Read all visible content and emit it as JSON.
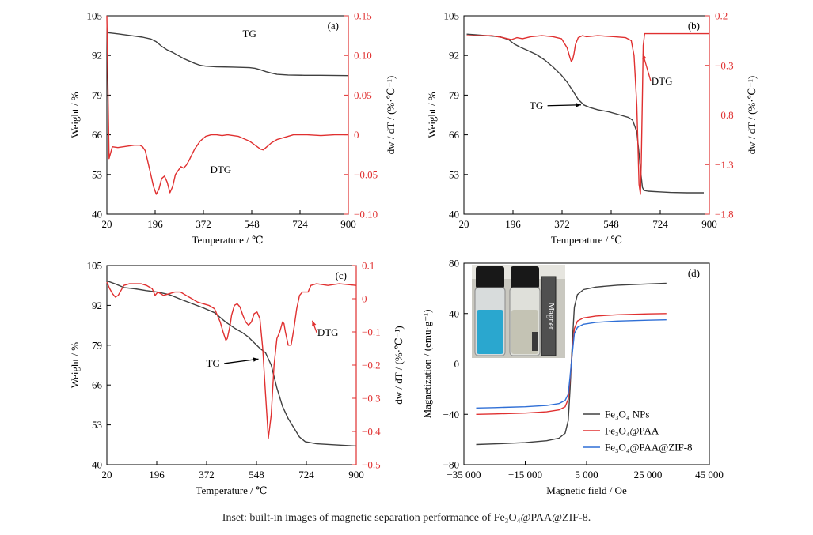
{
  "chart_data": [
    {
      "type": "line",
      "panel_label": "(a)",
      "xlabel": "Temperature / ℃",
      "ylabel_left": "Weight / %",
      "ylabel_right": "dw / dT / (%·℃⁻¹)",
      "xlim": [
        20,
        900
      ],
      "ylim_left": [
        40,
        105
      ],
      "ylim_right": [
        -0.1,
        0.15
      ],
      "x_ticks": [
        "20",
        "196",
        "372",
        "548",
        "724",
        "900"
      ],
      "y_ticks_left": [
        "40",
        "53",
        "66",
        "79",
        "92",
        "105"
      ],
      "y_ticks_right": [
        "−0.10",
        "−0.05",
        "0",
        "0.05",
        "0.10",
        "0.15"
      ],
      "annotations": [
        {
          "text": "TG",
          "x": 540,
          "y": 98,
          "axis": "left"
        },
        {
          "text": "DTG",
          "x": 435,
          "y": 53.5,
          "axis": "left"
        }
      ],
      "series": [
        {
          "name": "TG",
          "axis": "left",
          "color": "#404040",
          "x": [
            20,
            60,
            100,
            150,
            180,
            200,
            220,
            240,
            260,
            280,
            300,
            320,
            340,
            360,
            380,
            420,
            480,
            540,
            560,
            580,
            600,
            620,
            640,
            680,
            740,
            800,
            900
          ],
          "y": [
            99.5,
            99.1,
            98.6,
            98.0,
            97.4,
            96.5,
            95.0,
            93.8,
            93.0,
            92.0,
            91.0,
            90.2,
            89.4,
            88.8,
            88.5,
            88.3,
            88.2,
            88.0,
            87.8,
            87.3,
            86.7,
            86.2,
            85.8,
            85.6,
            85.5,
            85.5,
            85.4
          ]
        },
        {
          "name": "DTG",
          "axis": "right",
          "color": "#e03030",
          "x": [
            20,
            24,
            28,
            40,
            60,
            80,
            100,
            120,
            140,
            150,
            160,
            170,
            180,
            190,
            200,
            210,
            220,
            230,
            240,
            250,
            260,
            270,
            280,
            290,
            300,
            310,
            320,
            330,
            340,
            360,
            380,
            400,
            420,
            440,
            460,
            480,
            500,
            520,
            540,
            560,
            580,
            590,
            600,
            620,
            640,
            660,
            680,
            700,
            750,
            800,
            850,
            900
          ],
          "y": [
            0.15,
            0.06,
            -0.03,
            -0.015,
            -0.016,
            -0.015,
            -0.014,
            -0.013,
            -0.013,
            -0.015,
            -0.02,
            -0.035,
            -0.05,
            -0.065,
            -0.075,
            -0.068,
            -0.055,
            -0.052,
            -0.06,
            -0.073,
            -0.065,
            -0.05,
            -0.045,
            -0.04,
            -0.042,
            -0.038,
            -0.032,
            -0.025,
            -0.018,
            -0.008,
            -0.002,
            0.0,
            0.0,
            -0.001,
            0.0,
            -0.001,
            -0.002,
            -0.005,
            -0.008,
            -0.013,
            -0.018,
            -0.019,
            -0.016,
            -0.01,
            -0.006,
            -0.004,
            -0.002,
            0.0,
            0.0,
            -0.001,
            0.0,
            0.0
          ]
        }
      ]
    },
    {
      "type": "line",
      "panel_label": "(b)",
      "xlabel": "Temperature / ℃",
      "ylabel_left": "Weight / %",
      "ylabel_right": "dw / dT / (%·℃⁻¹)",
      "xlim": [
        20,
        900
      ],
      "ylim_left": [
        40,
        105
      ],
      "ylim_right": [
        -1.8,
        0.2
      ],
      "x_ticks": [
        "20",
        "196",
        "372",
        "548",
        "724",
        "900"
      ],
      "y_ticks_left": [
        "40",
        "53",
        "66",
        "79",
        "92",
        "105"
      ],
      "y_ticks_right": [
        "−1.8",
        "−1.3",
        "−0.8",
        "−0.3",
        "0.2"
      ],
      "annotations": [
        {
          "text": "TG",
          "x": 280,
          "y": 74.5,
          "axis": "left",
          "arrow_to": [
            440,
            75.8
          ]
        },
        {
          "text": "DTG",
          "x": 730,
          "y": 82.5,
          "axis": "left",
          "arrow_to": [
            662,
            92.5
          ]
        }
      ],
      "series": [
        {
          "name": "TG",
          "axis": "left",
          "color": "#404040",
          "x": [
            30,
            60,
            100,
            150,
            180,
            200,
            220,
            250,
            280,
            310,
            340,
            370,
            390,
            410,
            430,
            450,
            470,
            500,
            540,
            580,
            610,
            625,
            640,
            648,
            655,
            660,
            665,
            680,
            720,
            760,
            820,
            880
          ],
          "y": [
            99.0,
            98.8,
            98.5,
            98.1,
            97.2,
            95.8,
            94.8,
            93.6,
            92.3,
            90.5,
            88.2,
            85.5,
            83.3,
            80.5,
            77.6,
            75.8,
            75.0,
            74.2,
            73.5,
            72.5,
            71.7,
            70.8,
            67.0,
            60.0,
            53.0,
            48.8,
            47.8,
            47.5,
            47.3,
            47.1,
            47.0,
            47.0
          ]
        },
        {
          "name": "DTG",
          "axis": "right",
          "color": "#e03030",
          "x": [
            30,
            80,
            120,
            160,
            190,
            210,
            230,
            260,
            300,
            340,
            370,
            390,
            400,
            405,
            410,
            415,
            420,
            430,
            445,
            460,
            500,
            560,
            600,
            620,
            630,
            640,
            648,
            653,
            656,
            660,
            663,
            668,
            680,
            720,
            800,
            900
          ],
          "y": [
            0.0,
            0.0,
            0.0,
            -0.02,
            -0.04,
            -0.02,
            -0.03,
            -0.01,
            0.0,
            -0.01,
            -0.03,
            -0.12,
            -0.22,
            -0.26,
            -0.24,
            -0.18,
            -0.09,
            -0.02,
            0.0,
            -0.01,
            0.0,
            -0.01,
            -0.02,
            -0.05,
            -0.2,
            -0.7,
            -1.5,
            -1.6,
            -1.3,
            -0.6,
            -0.1,
            0.02,
            0.02,
            0.02,
            0.02,
            0.02
          ]
        }
      ]
    },
    {
      "type": "line",
      "panel_label": "(c)",
      "xlabel": "Temperature / ℃",
      "ylabel_left": "Weight / %",
      "ylabel_right": "dw / dT / (%·℃⁻¹)",
      "xlim": [
        20,
        900
      ],
      "ylim_left": [
        40,
        105
      ],
      "ylim_right": [
        -0.5,
        0.1
      ],
      "x_ticks": [
        "20",
        "196",
        "372",
        "548",
        "724",
        "900"
      ],
      "y_ticks_left": [
        "40",
        "53",
        "66",
        "79",
        "92",
        "105"
      ],
      "y_ticks_right": [
        "−0.5",
        "−0.4",
        "−0.3",
        "−0.2",
        "−0.1",
        "0",
        "0.1"
      ],
      "annotations": [
        {
          "text": "TG",
          "x": 395,
          "y": 72,
          "axis": "left",
          "arrow_to": [
            555,
            74.5
          ]
        },
        {
          "text": "DTG",
          "x": 800,
          "y": 82,
          "axis": "left",
          "arrow_to": [
            745,
            87
          ]
        }
      ],
      "series": [
        {
          "name": "TG",
          "axis": "left",
          "color": "#404040",
          "x": [
            20,
            50,
            80,
            120,
            160,
            200,
            240,
            280,
            320,
            360,
            400,
            440,
            470,
            500,
            520,
            540,
            560,
            580,
            600,
            620,
            640,
            660,
            680,
            700,
            720,
            760,
            820,
            900
          ],
          "y": [
            100.0,
            99.0,
            97.8,
            97.4,
            96.8,
            96.3,
            95.5,
            94.0,
            92.6,
            91.2,
            89.6,
            86.5,
            84.6,
            83.0,
            81.6,
            79.8,
            78.0,
            76.5,
            72.5,
            65.0,
            59.0,
            55.0,
            52.0,
            49.0,
            47.5,
            46.8,
            46.5,
            46.1
          ]
        },
        {
          "name": "DTG",
          "axis": "right",
          "color": "#e03030",
          "x": [
            20,
            30,
            40,
            50,
            60,
            80,
            100,
            120,
            140,
            160,
            180,
            190,
            200,
            210,
            220,
            240,
            260,
            280,
            300,
            320,
            340,
            360,
            380,
            400,
            410,
            420,
            430,
            440,
            445,
            450,
            455,
            460,
            470,
            480,
            490,
            500,
            510,
            520,
            530,
            540,
            550,
            560,
            570,
            580,
            590,
            600,
            610,
            620,
            630,
            640,
            645,
            650,
            660,
            670,
            680,
            690,
            700,
            710,
            720,
            730,
            740,
            760,
            800,
            840,
            900
          ],
          "y": [
            0.05,
            0.03,
            0.015,
            0.005,
            0.01,
            0.04,
            0.045,
            0.045,
            0.045,
            0.04,
            0.03,
            0.01,
            0.02,
            0.015,
            0.01,
            0.015,
            0.02,
            0.02,
            0.01,
            0.0,
            -0.01,
            -0.015,
            -0.02,
            -0.03,
            -0.05,
            -0.07,
            -0.1,
            -0.125,
            -0.12,
            -0.1,
            -0.08,
            -0.05,
            -0.02,
            -0.015,
            -0.025,
            -0.05,
            -0.07,
            -0.08,
            -0.07,
            -0.045,
            -0.04,
            -0.06,
            -0.15,
            -0.29,
            -0.42,
            -0.35,
            -0.2,
            -0.12,
            -0.1,
            -0.07,
            -0.075,
            -0.1,
            -0.14,
            -0.14,
            -0.09,
            -0.03,
            0.01,
            0.02,
            0.02,
            0.02,
            0.04,
            0.045,
            0.04,
            0.045,
            0.04
          ]
        }
      ]
    },
    {
      "type": "line",
      "panel_label": "(d)",
      "xlabel": "Magnetic field / Oe",
      "ylabel": "Magnetization / (emu·g⁻¹)",
      "xlim": [
        -35000,
        45000
      ],
      "ylim": [
        -80,
        80
      ],
      "x_ticks": [
        "−35 000",
        "−15 000",
        "5 000",
        "25 000",
        "45 000"
      ],
      "y_ticks": [
        "−80",
        "−40",
        "0",
        "40",
        "80"
      ],
      "legend_position": "lower-right",
      "inset": {
        "label": "Magnet"
      },
      "series": [
        {
          "name": "Fe₃O₄ NPs",
          "color": "#404040",
          "x": [
            -31000,
            -25000,
            -15000,
            -8000,
            -4000,
            -2000,
            -1000,
            -400,
            0,
            400,
            1000,
            2000,
            4000,
            8000,
            15000,
            25000,
            31000
          ],
          "y": [
            -64.0,
            -63.5,
            -62.5,
            -61.0,
            -59.0,
            -55.0,
            -45.0,
            -20.0,
            0.0,
            20.0,
            45.0,
            55.0,
            59.0,
            61.0,
            62.5,
            63.5,
            64.0
          ]
        },
        {
          "name": "Fe₃O₄@PAA",
          "color": "#e03030",
          "x": [
            -31000,
            -25000,
            -15000,
            -8000,
            -4000,
            -2000,
            -1000,
            -400,
            0,
            400,
            1000,
            2000,
            4000,
            8000,
            15000,
            25000,
            31000
          ],
          "y": [
            -40.0,
            -39.7,
            -39.0,
            -38.0,
            -36.5,
            -34.0,
            -28.0,
            -12.0,
            0.0,
            12.0,
            28.0,
            34.0,
            36.5,
            38.0,
            39.0,
            39.7,
            40.0
          ]
        },
        {
          "name": "Fe₃O₄@PAA@ZIF-8",
          "color": "#2f6fd6",
          "x": [
            -31000,
            -25000,
            -15000,
            -8000,
            -4000,
            -2000,
            -1000,
            -400,
            0,
            400,
            1000,
            2000,
            4000,
            8000,
            15000,
            25000,
            31000
          ],
          "y": [
            -35.0,
            -34.7,
            -34.0,
            -33.0,
            -31.5,
            -29.0,
            -24.0,
            -10.0,
            0.0,
            10.0,
            24.0,
            29.0,
            31.5,
            33.0,
            34.0,
            34.7,
            35.0
          ]
        }
      ]
    }
  ],
  "caption": "Inset: built-in images of magnetic separation performance of Fe₃O₄@PAA@ZIF-8."
}
